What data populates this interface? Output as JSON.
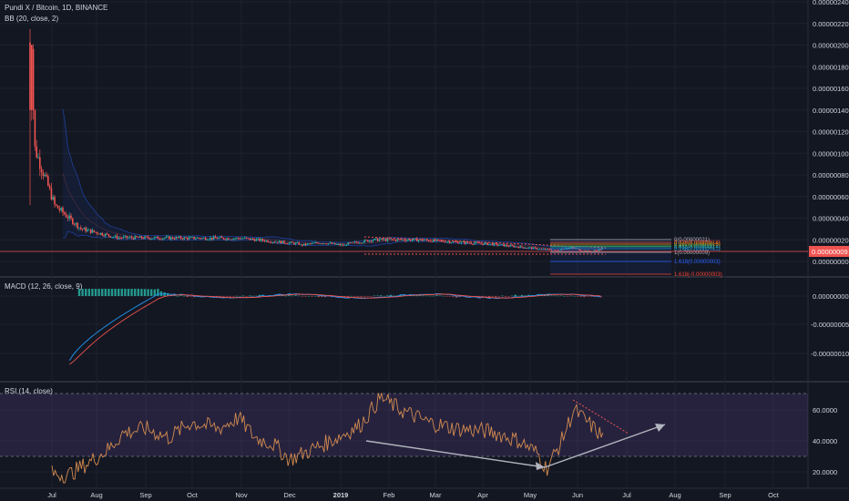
{
  "main": {
    "title": "Pundi X / Bitcoin, 1D, BINANCE",
    "indicator": "BB (20, close, 2)",
    "price_ticks": [
      "0.00000240",
      "0.00000220",
      "0.00000200",
      "0.00000180",
      "0.00000160",
      "0.00000140",
      "0.00000120",
      "0.00000100",
      "0.00000080",
      "0.00000060",
      "0.00000040",
      "0.00000020",
      "0.00000000"
    ],
    "last_price": "0.00000009",
    "fib_levels": [
      {
        "label": "0(0.00000021)",
        "color": "#b2b5be"
      },
      {
        "label": "0.236(0.00000018)",
        "color": "#ef5350"
      },
      {
        "label": "0.382(0.00000016)",
        "color": "#ff9800"
      },
      {
        "label": "0.5(0.00000015)",
        "color": "#4caf50"
      },
      {
        "label": "0.618(0.00000014)",
        "color": "#26a69a"
      },
      {
        "label": "0.786(0.00000012)",
        "color": "#2196f3"
      },
      {
        "label": "1(0.00000009)",
        "color": "#b2b5be"
      },
      {
        "label": "1.618(0.00000003)",
        "color": "#2962ff"
      },
      {
        "label": "1.618(-0.00000003)",
        "color": "#f44336"
      }
    ]
  },
  "macd": {
    "title": "MACD (12, 26, close, 9)",
    "ticks": [
      "0.00000000",
      "-0.00000005",
      "-0.00000010"
    ]
  },
  "rsi": {
    "title": "RSI (14, close)",
    "ticks": [
      "60.0000",
      "40.0000",
      "20.0000"
    ]
  },
  "time_axis": [
    "Jul",
    "Aug",
    "Sep",
    "Oct",
    "Nov",
    "Dec",
    "2019",
    "Feb",
    "Mar",
    "Apr",
    "May",
    "Jun",
    "Jul",
    "Aug",
    "Sep",
    "Oct"
  ],
  "colors": {
    "background": "#131722",
    "up": "#26a69a",
    "down": "#ef5350",
    "bb": "#2962ff",
    "rsi_line": "#d38b4f",
    "rsi_band": "#7e57c2",
    "macd_line": "#2196f3",
    "signal_line": "#ef5350",
    "last_price_line": "#ef5350",
    "trend_arrow": "#b2b5be"
  },
  "chart_data": [
    {
      "type": "candlestick",
      "title": "Pundi X / Bitcoin, 1D, BINANCE",
      "ylim": [
        0,
        2.4e-06
      ],
      "x_start": "2018-06-26",
      "x_end": "2019-06-18",
      "close_series": [
        1.2e-06,
        8.5e-07,
        5e-07,
        3e-07,
        2.2e-07,
        2e-07,
        1.9e-07,
        1.7e-07,
        1.4e-07,
        1.6e-07,
        1.8e-07,
        1.5e-07,
        1.3e-07,
        1.2e-07,
        1e-07,
        9e-08
      ],
      "last_value": 9e-08
    },
    {
      "type": "line",
      "title": "MACD (12, 26, close, 9)",
      "ylim": [
        -1.3e-07,
        3e-08
      ],
      "series": [
        {
          "name": "MACD",
          "values": [
            -1.2e-07,
            -9e-08,
            -5.5e-08,
            -2e-08,
            -5e-09,
            3e-09,
            2e-09,
            0.0,
            -8e-09,
            -3e-09,
            2e-09,
            1e-09,
            -2e-09,
            -4e-09,
            1e-09,
            0.0
          ]
        },
        {
          "name": "Signal",
          "values": [
            -1.2e-07,
            -1e-07,
            -6.5e-08,
            -3e-08,
            -1e-08,
            0.0,
            2e-09,
            1e-09,
            -5e-09,
            -4e-09,
            1e-09,
            1e-09,
            -1e-09,
            -3e-09,
            0.0,
            0.0
          ]
        }
      ]
    },
    {
      "type": "line",
      "title": "RSI (14, close)",
      "ylim": [
        15,
        75
      ],
      "series": [
        {
          "name": "RSI",
          "values": [
            19,
            26,
            45,
            50,
            52,
            55,
            48,
            42,
            28,
            35,
            47,
            62,
            50,
            48,
            32,
            22,
            62,
            45
          ]
        }
      ]
    }
  ]
}
